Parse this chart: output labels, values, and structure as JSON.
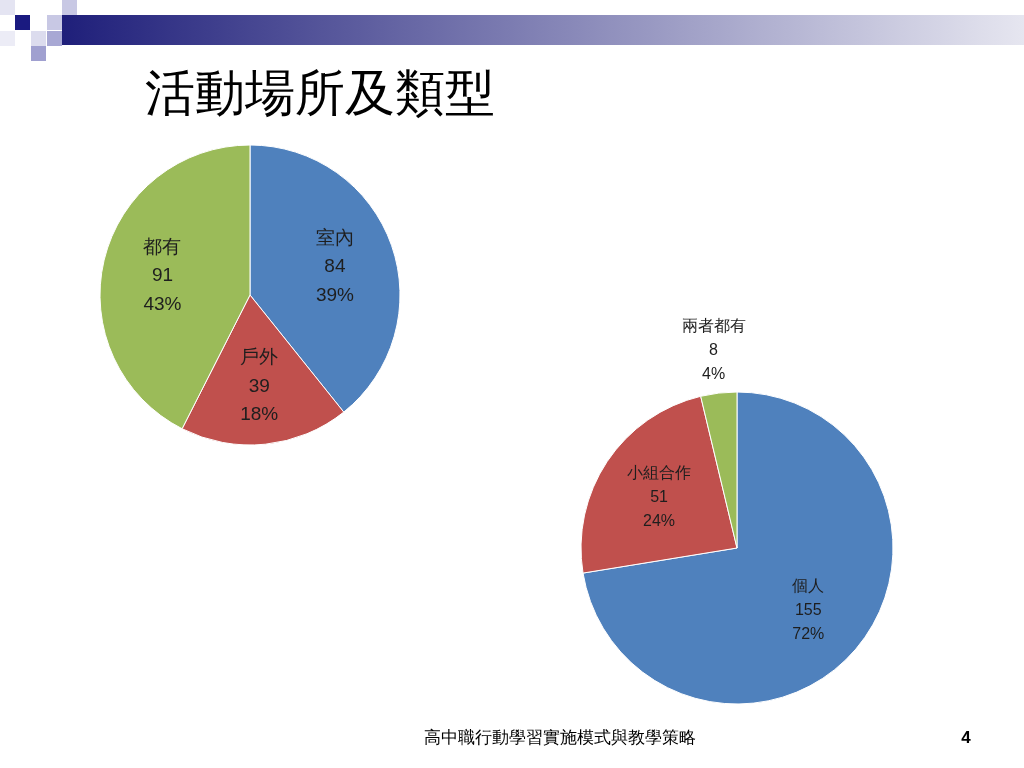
{
  "chart_data": [
    {
      "type": "pie",
      "title": "活動場所及類型",
      "categories": [
        "室內",
        "戶外",
        "都有"
      ],
      "values": [
        84,
        39,
        91
      ],
      "colors": [
        "#4f81bd",
        "#c0504d",
        "#9bbb59"
      ],
      "value_labels": [
        "84\n39%",
        "39\n18%",
        "91\n43%"
      ]
    },
    {
      "type": "pie",
      "categories": [
        "個人",
        "小組合作",
        "兩者都有"
      ],
      "values": [
        155,
        51,
        8
      ],
      "colors": [
        "#4f81bd",
        "#c0504d",
        "#9bbb59"
      ],
      "value_labels": [
        "155\n72%",
        "51\n24%",
        "8\n4%"
      ],
      "annotations": [
        "高中職行動學習實施模式與教學策略",
        "4"
      ]
    }
  ]
}
